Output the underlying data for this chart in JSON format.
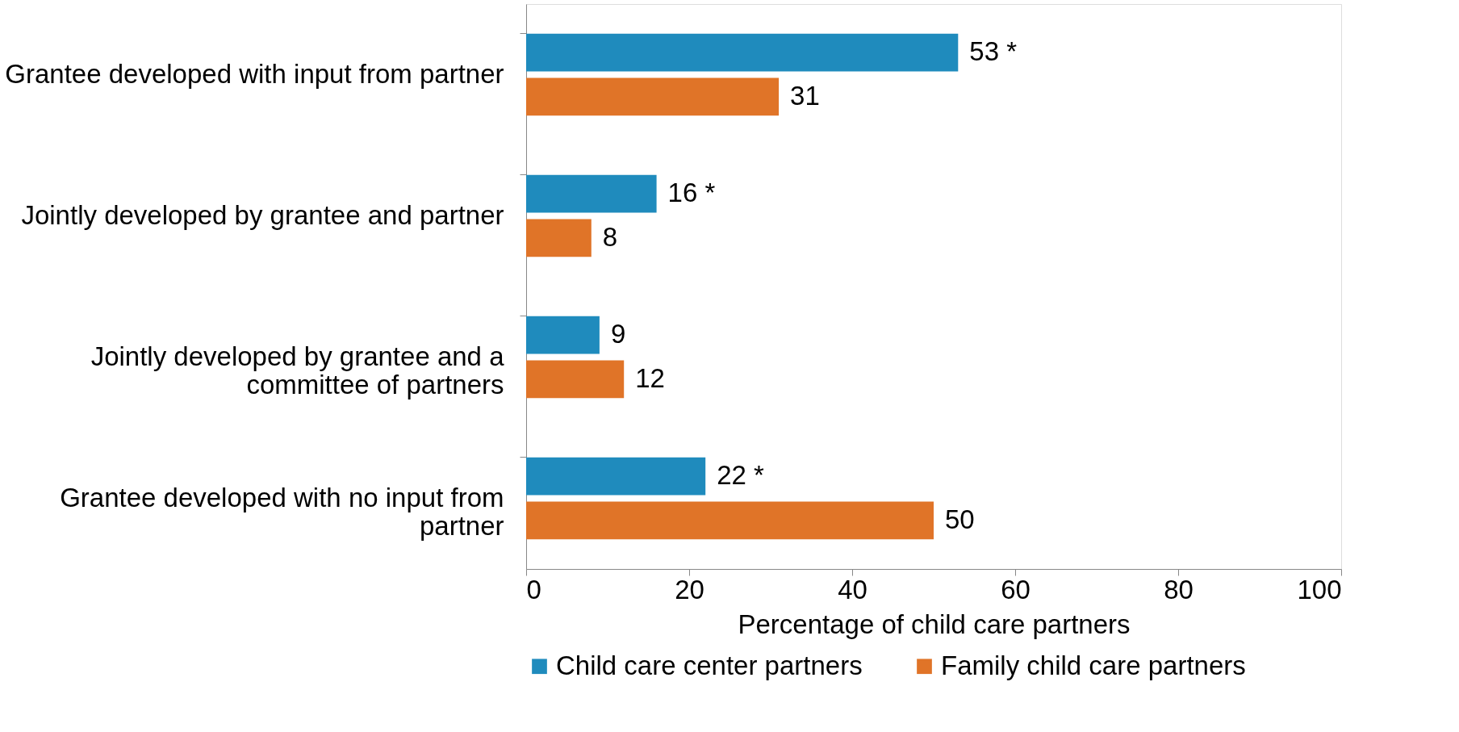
{
  "chart_data": {
    "type": "bar",
    "orientation": "horizontal",
    "categories": [
      "Grantee developed with input from partner",
      "Jointly developed by grantee and partner",
      "Jointly developed by grantee and a committee of partners",
      "Grantee developed with no input from partner"
    ],
    "series": [
      {
        "name": "Child care center partners",
        "color": "#1f8bbd",
        "values": [
          53,
          16,
          9,
          22
        ],
        "value_labels": [
          "53 *",
          "16 *",
          "9",
          "22 *"
        ]
      },
      {
        "name": "Family child care partners",
        "color": "#e07428",
        "values": [
          31,
          8,
          12,
          50
        ],
        "value_labels": [
          "31",
          "8",
          "12",
          "50"
        ]
      }
    ],
    "xlabel": "Percentage of child care partners",
    "xlim": [
      0,
      100
    ],
    "xticks": [
      0,
      20,
      40,
      60,
      80,
      100
    ],
    "grid": false,
    "legend": "bottom"
  }
}
